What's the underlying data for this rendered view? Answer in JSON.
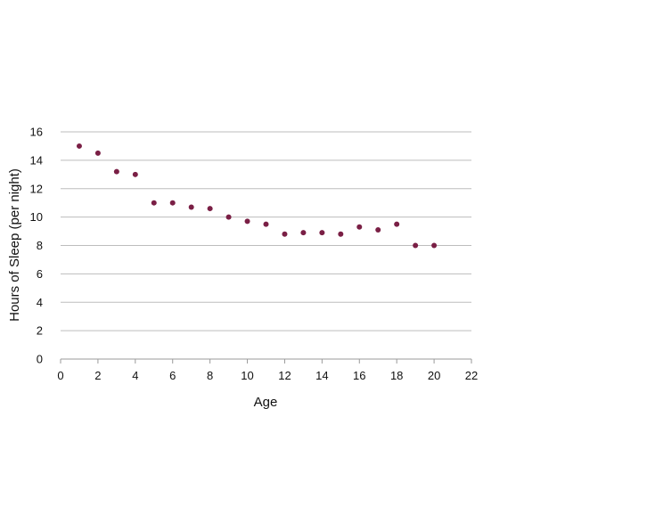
{
  "chart_data": {
    "type": "scatter",
    "title": "",
    "xlabel": "Age",
    "ylabel": "Hours of Sleep (per night)",
    "xlim": [
      0,
      22
    ],
    "ylim": [
      0,
      16
    ],
    "x_ticks": [
      0,
      2,
      4,
      6,
      8,
      10,
      12,
      14,
      16,
      18,
      20,
      22
    ],
    "y_ticks": [
      0,
      2,
      4,
      6,
      8,
      10,
      12,
      14,
      16
    ],
    "grid": "horizontal",
    "legend": "none",
    "point_color": "#7a1f45",
    "grid_color": "#bdbdbd",
    "axis_color": "#9a9a9a",
    "points": [
      {
        "x": 1,
        "y": 15.0
      },
      {
        "x": 2,
        "y": 14.5
      },
      {
        "x": 3,
        "y": 13.2
      },
      {
        "x": 4,
        "y": 13.0
      },
      {
        "x": 5,
        "y": 11.0
      },
      {
        "x": 6,
        "y": 11.0
      },
      {
        "x": 7,
        "y": 10.7
      },
      {
        "x": 8,
        "y": 10.6
      },
      {
        "x": 9,
        "y": 10.0
      },
      {
        "x": 10,
        "y": 9.7
      },
      {
        "x": 11,
        "y": 9.5
      },
      {
        "x": 12,
        "y": 8.8
      },
      {
        "x": 13,
        "y": 8.9
      },
      {
        "x": 14,
        "y": 8.9
      },
      {
        "x": 15,
        "y": 8.8
      },
      {
        "x": 16,
        "y": 9.3
      },
      {
        "x": 17,
        "y": 9.1
      },
      {
        "x": 18,
        "y": 9.5
      },
      {
        "x": 19,
        "y": 8.0
      },
      {
        "x": 20,
        "y": 8.0
      }
    ]
  }
}
